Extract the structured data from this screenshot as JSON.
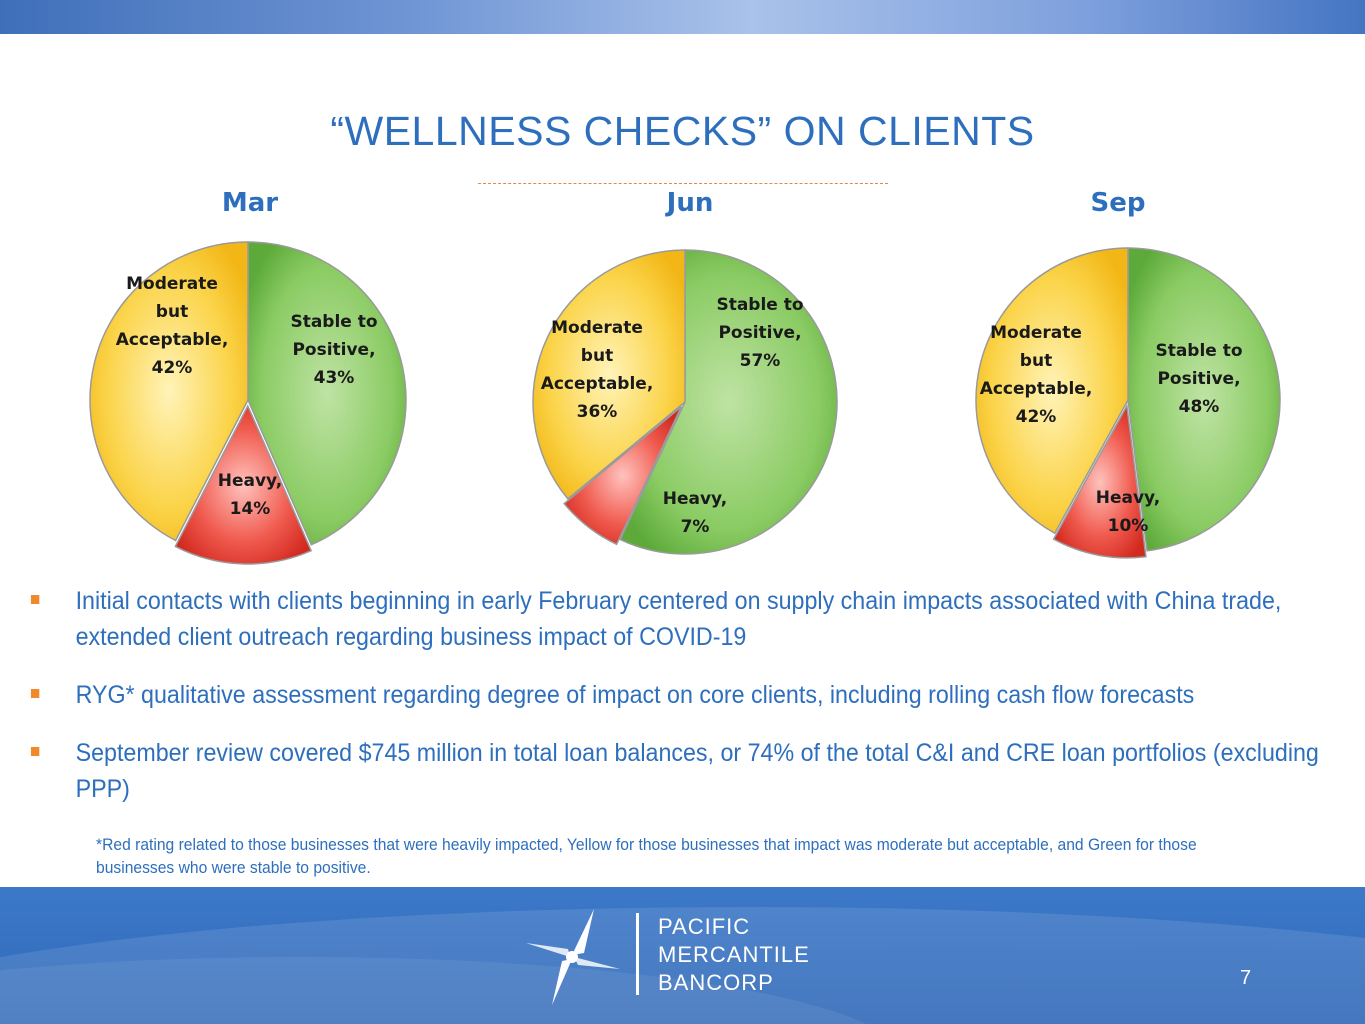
{
  "title": "“WELLNESS CHECKS” ON CLIENTS",
  "colors": {
    "green": "#6fbf4a",
    "yellow": "#f7c61a",
    "red": "#e23a2f",
    "title_blue": "#2e6fbd",
    "bullet_orange": "#f0892a"
  },
  "chart_data": [
    {
      "type": "pie",
      "title": "Mar",
      "slices": [
        {
          "label": [
            "Stable to",
            "Positive,",
            "43%"
          ],
          "category": "Stable to Positive",
          "value": 43,
          "color": "green"
        },
        {
          "label": [
            "Heavy,",
            "14%"
          ],
          "category": "Heavy",
          "value": 14,
          "color": "red"
        },
        {
          "label": [
            "Moderate",
            "but",
            "Acceptable,",
            "42%"
          ],
          "category": "Moderate but Acceptable",
          "value": 42,
          "color": "yellow"
        }
      ]
    },
    {
      "type": "pie",
      "title": "Jun",
      "slices": [
        {
          "label": [
            "Stable to",
            "Positive,",
            "57%"
          ],
          "category": "Stable to Positive",
          "value": 57,
          "color": "green"
        },
        {
          "label": [
            "Heavy,",
            "7%"
          ],
          "category": "Heavy",
          "value": 7,
          "color": "red"
        },
        {
          "label": [
            "Moderate",
            "but",
            "Acceptable,",
            "36%"
          ],
          "category": "Moderate but Acceptable",
          "value": 36,
          "color": "yellow"
        }
      ]
    },
    {
      "type": "pie",
      "title": "Sep",
      "slices": [
        {
          "label": [
            "Stable to",
            "Positive,",
            "48%"
          ],
          "category": "Stable to Positive",
          "value": 48,
          "color": "green"
        },
        {
          "label": [
            "Heavy,",
            "10%"
          ],
          "category": "Heavy",
          "value": 10,
          "color": "red"
        },
        {
          "label": [
            "Moderate",
            "but",
            "Acceptable,",
            "42%"
          ],
          "category": "Moderate but Acceptable",
          "value": 42,
          "color": "yellow"
        }
      ]
    }
  ],
  "bullets": [
    "Initial contacts with clients beginning in early February centered on supply chain impacts associated with China trade, extended client outreach regarding business impact of COVID-19",
    "RYG* qualitative assessment regarding degree of impact on core clients, including rolling cash flow forecasts",
    "September review covered $745 million in total loan balances, or 74% of the total C&I and CRE loan portfolios (excluding PPP)"
  ],
  "footnote": "*Red rating related to those businesses that were heavily impacted, Yellow for those businesses that impact was moderate but acceptable, and Green for those businesses who were stable to positive.",
  "logo": {
    "line1": "PACIFIC",
    "line2": "MERCANTILE",
    "line3": "BANCORP"
  },
  "page_number": "7"
}
